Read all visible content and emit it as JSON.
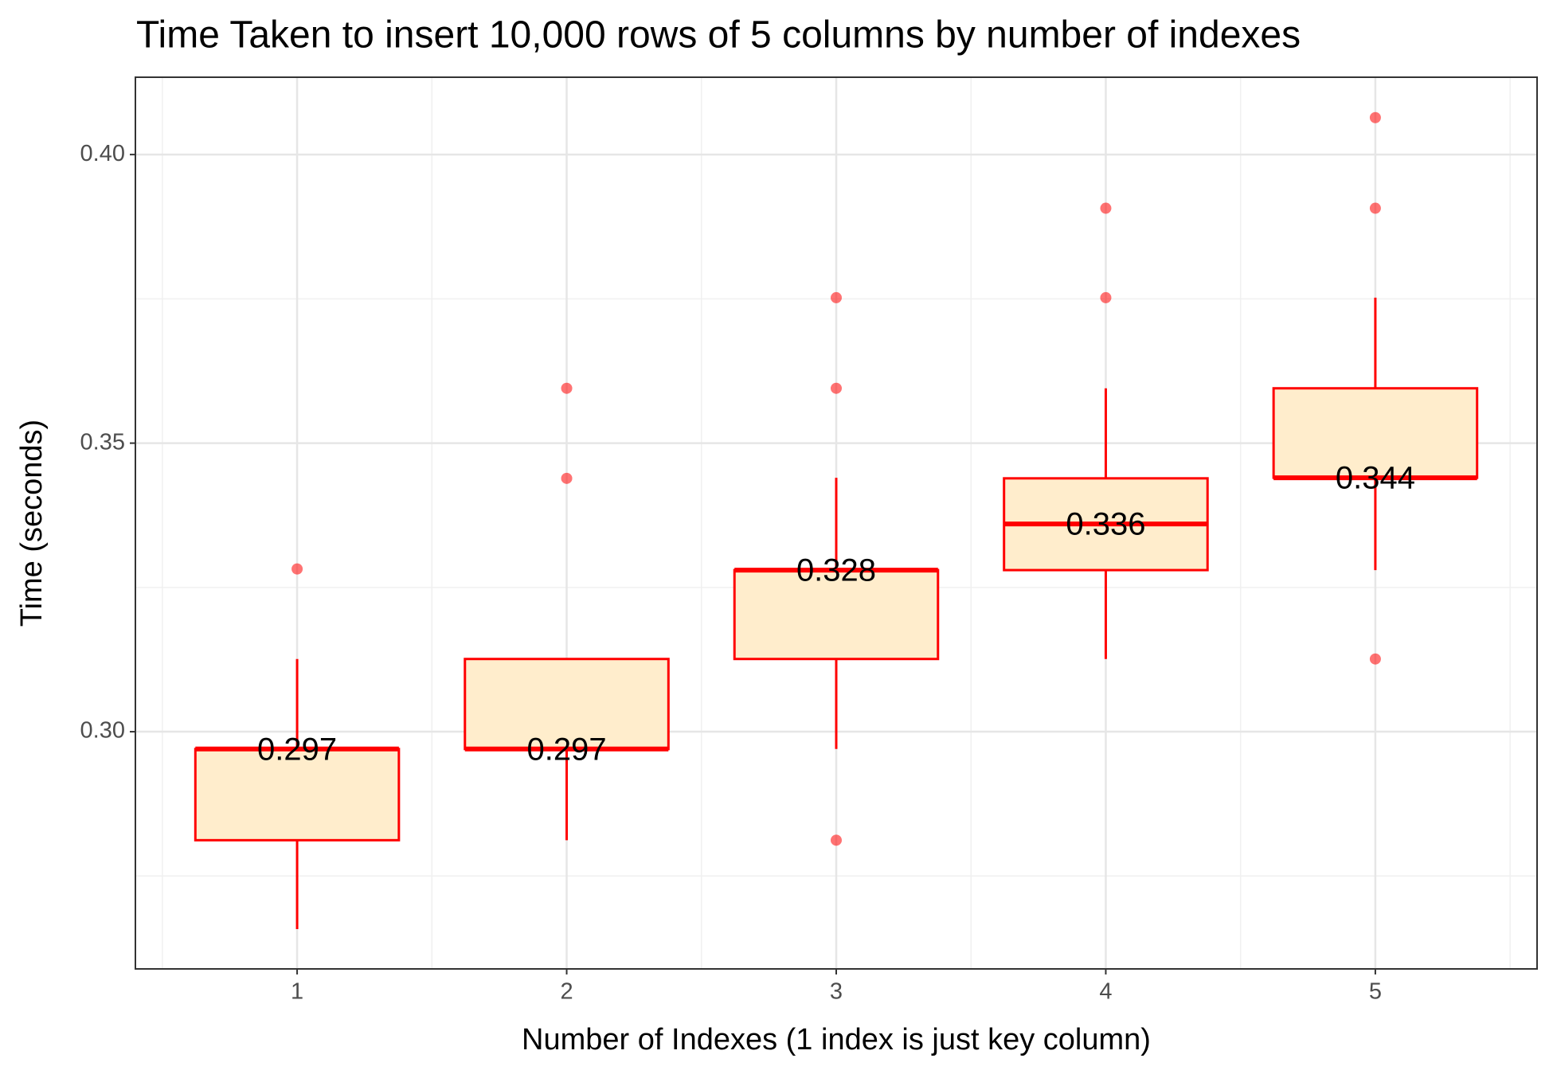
{
  "chart_data": {
    "type": "boxplot",
    "title": "Time Taken to insert 10,000 rows of 5 columns by number of indexes",
    "x_label": "Number of Indexes (1 index is just key column)",
    "y_label": "Time (seconds)",
    "categories": [
      "1",
      "2",
      "3",
      "4",
      "5"
    ],
    "boxes": [
      {
        "low": 0.2658,
        "q1": 0.2812,
        "median": 0.297,
        "q3": 0.297,
        "high": 0.3126,
        "outliers": [
          0.3282
        ]
      },
      {
        "low": 0.2812,
        "q1": 0.297,
        "median": 0.297,
        "q3": 0.3126,
        "high": 0.3126,
        "outliers": [
          0.3439,
          0.3595
        ]
      },
      {
        "low": 0.297,
        "q1": 0.3126,
        "median": 0.328,
        "q3": 0.328,
        "high": 0.344,
        "outliers": [
          0.2812,
          0.3595,
          0.3752
        ]
      },
      {
        "low": 0.3126,
        "q1": 0.328,
        "median": 0.336,
        "q3": 0.3439,
        "high": 0.3595,
        "outliers": [
          0.3752,
          0.3907
        ]
      },
      {
        "low": 0.328,
        "q1": 0.344,
        "median": 0.344,
        "q3": 0.3595,
        "high": 0.3752,
        "outliers": [
          0.3126,
          0.3907,
          0.4064
        ]
      }
    ],
    "value_labels": [
      "0.297",
      "0.297",
      "0.328",
      "0.336",
      "0.344"
    ],
    "fill": "#ffedcc",
    "color": "#ff0000",
    "ylim": [
      0.2589,
      0.4134
    ],
    "yticks": [
      {
        "value": 0.3,
        "label": "0.30"
      },
      0.35,
      {
        "value": 0.4,
        "label": "0.40"
      }
    ],
    "minor_yticks": [
      0.275,
      0.325,
      0.375
    ],
    "grid": true
  }
}
